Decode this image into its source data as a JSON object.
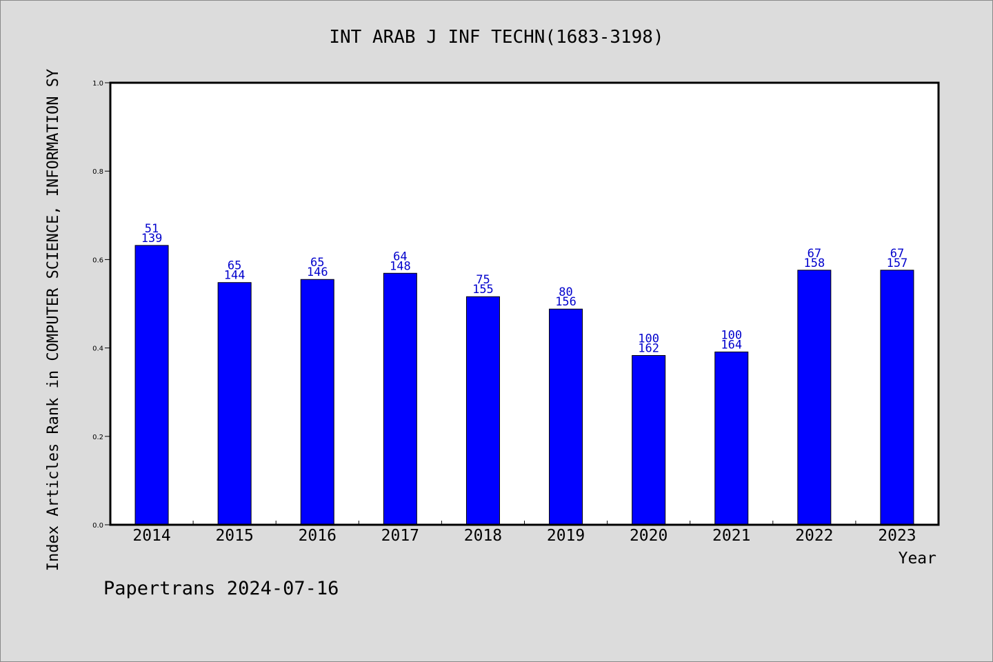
{
  "chart_data": {
    "type": "bar",
    "title": "INT ARAB J INF TECHN(1683-3198)",
    "xlabel": "Year",
    "ylabel": "Index Articles Rank in COMPUTER SCIENCE, INFORMATION SY",
    "footer": "Papertrans 2024-07-16",
    "categories": [
      "2014",
      "2015",
      "2016",
      "2017",
      "2018",
      "2019",
      "2020",
      "2021",
      "2022",
      "2023"
    ],
    "values": [
      0.632,
      0.548,
      0.555,
      0.569,
      0.516,
      0.488,
      0.383,
      0.391,
      0.576,
      0.576
    ],
    "labels_top": [
      "51",
      "65",
      "65",
      "64",
      "75",
      "80",
      "100",
      "100",
      "67",
      "67"
    ],
    "labels_bottom": [
      "139",
      "144",
      "146",
      "148",
      "155",
      "156",
      "162",
      "164",
      "158",
      "157"
    ],
    "ylim": [
      0,
      1.0
    ],
    "yticks": [
      "0.0",
      "0.2",
      "0.4",
      "0.6",
      "0.8",
      "1.0"
    ],
    "grid": false,
    "legend": "none",
    "colors": {
      "bar": "#0000ff",
      "label": "#0000cc",
      "background": "#dcdcdc",
      "plot_bg": "#ffffff"
    }
  }
}
